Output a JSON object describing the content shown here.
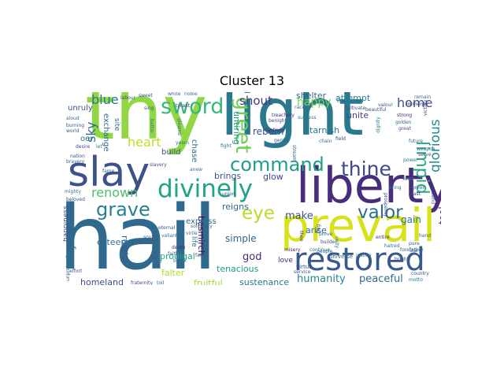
{
  "title": "Cluster 13",
  "words": {
    "hail": "hail",
    "thy": "thy",
    "light": "light",
    "liberty": "liberty",
    "prevail": "prevail",
    "slay": "slay",
    "restored": "restored",
    "divinely": "divinely",
    "sword": "sword",
    "greet": "greet",
    "command": "command",
    "thine": "thine",
    "grave": "grave",
    "valor": "valor",
    "eye": "eye",
    "limpid": "limpid",
    "glorious": "glorious",
    "blue": "blue",
    "sky": "sky",
    "heart": "heart",
    "renown": "renown",
    "shout": "shout",
    "happy": "happy",
    "home": "home",
    "untiring": "untiring",
    "reborn": "reborn",
    "tarnish": "tarnish",
    "unite": "unite",
    "attempt": "attempt",
    "shelter": "shelter",
    "humanity": "humanity",
    "peaceful": "peaceful",
    "make": "make",
    "arise": "arise",
    "gain": "gain",
    "tool": "tool",
    "god": "god",
    "simple": "simple",
    "besmirch": "besmirch",
    "farm": "farm",
    "rustic": "rustic",
    "esteem": "esteem",
    "prodigal": "prodigal",
    "falter": "falter",
    "homeland": "homeland",
    "fruitful": "fruitful",
    "sustenance": "sustenance",
    "tenacious": "tenacious",
    "reigns": "reigns",
    "express": "express",
    "brings": "brings",
    "glow": "glow",
    "build": "build",
    "chase": "chase",
    "exchange": "exchange",
    "oer": "oer",
    "unruly": "unruly",
    "happiness": "happiness",
    "life": "life",
    "site": "site",
    "love": "love",
    "virtue": "virtue",
    "universe": "universe",
    "service": "service",
    "misery": "misery",
    "builder": "builder",
    "people": "people",
    "unity": "unity",
    "prove": "prove",
    "beautiful": "beautiful",
    "dignity": "dignity",
    "strong": "strong",
    "golden": "golden",
    "great": "great",
    "bring": "bring",
    "hast": "hast",
    "green": "green",
    "land": "land",
    "prosperity": "prosperity",
    "entire": "entire",
    "pure": "pure",
    "hatred": "hatred",
    "forefather": "forefather",
    "country": "country",
    "motto": "motto",
    "victory": "victory",
    "remain": "remain",
    "bend": "bend",
    "hand": "hand",
    "cultivate": "cultivate",
    "race": "race",
    "treachery": "treachery",
    "success": "success",
    "benight": "benight",
    "live": "live",
    "valour": "valour",
    "labour": "labour",
    "sweet": "sweet",
    "white": "white",
    "noble": "noble",
    "tyrant": "tyrant",
    "burning": "burning",
    "aloud": "aloud",
    "world": "world",
    "desire": "desire",
    "let": "let",
    "nation": "nation",
    "bravery": "bravery",
    "mighty": "mighty",
    "beloved": "beloved",
    "fame": "fame",
    "slavery": "slavery",
    "anew": "anew",
    "union": "union",
    "unpretending": "unpretending",
    "effort": "effort",
    "mother": "mother",
    "fraternity": "fraternity",
    "death": "death",
    "faith": "faith",
    "break": "break",
    "eternal": "eternal",
    "solidarity": "solidarity",
    "valiant": "valiant",
    "virile": "virile",
    "soul": "soul",
    "face": "face",
    "continue": "continue",
    "chain": "chain",
    "gentle": "gentle",
    "captivity": "captivity",
    "yearn": "yearn",
    "gleams": "gleams",
    "field": "field",
    "star": "star",
    "power": "power",
    "future": "future",
    "serve": "serve",
    "weapon": "weapon",
    "immense": "immense",
    "toil": "toil",
    "battle": "battle",
    "sing": "sing",
    "flag": "flag",
    "stream": "stream",
    "fight": "fight",
    "bright": "bright",
    "justice": "justice",
    "thee": "thee"
  },
  "colors": {
    "hail": "#31688e",
    "thy": "#90d743",
    "light": "#2a788e",
    "liberty": "#472d7b",
    "prevail": "#d8e219",
    "slay": "#3b528b",
    "restored": "#38598c",
    "divinely": "#20a386",
    "sword": "#35b779",
    "greet": "#6ece58",
    "command": "#1f9e89",
    "thine": "#3e4a89",
    "grave": "#26828e",
    "valor": "#2e6e8e",
    "eye": "#b5de2b",
    "limpid": "#25ab82",
    "glorious": "#228d8d",
    "blue": "#2a788e",
    "sky": "#31688e",
    "heart": "#bddf26",
    "renown": "#4ac16d",
    "shout": "#443983",
    "happy": "#7ad151",
    "home": "#3b528b"
  }
}
